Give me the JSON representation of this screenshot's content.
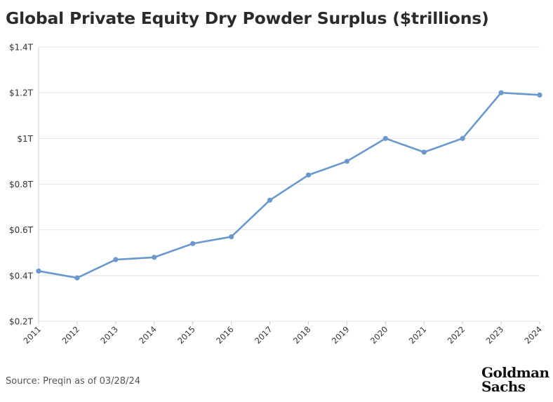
{
  "chart_data": {
    "type": "line",
    "title": "Global Private Equity Dry Powder Surplus ($trillions)",
    "xlabel": "",
    "ylabel": "",
    "categories": [
      "2011",
      "2012",
      "2013",
      "2014",
      "2015",
      "2016",
      "2017",
      "2018",
      "2019",
      "2020",
      "2021",
      "2022",
      "2023",
      "2024"
    ],
    "series": [
      {
        "values": [
          0.42,
          0.39,
          0.47,
          0.48,
          0.54,
          0.57,
          0.73,
          0.84,
          0.9,
          1.0,
          0.94,
          1.0,
          1.2,
          1.19
        ],
        "color": "#6a98cc"
      }
    ],
    "ylim": [
      0.2,
      1.4
    ],
    "yticks": [
      1.4,
      1.2,
      1.0,
      0.8,
      0.6,
      0.4,
      0.2
    ],
    "ytick_labels": [
      "$1.4T",
      "$1.2T",
      "$1T",
      "$0.8T",
      "$0.6T",
      "$0.4T",
      "$0.2T"
    ],
    "grid": "horizontal",
    "legend": "none"
  },
  "source": "Source: Preqin as of 03/28/24",
  "logo": {
    "line1": "Goldman",
    "line2": "Sachs"
  },
  "colors": {
    "line": "#6a98cc",
    "grid": "#e4e4e4",
    "text": "#333333"
  }
}
